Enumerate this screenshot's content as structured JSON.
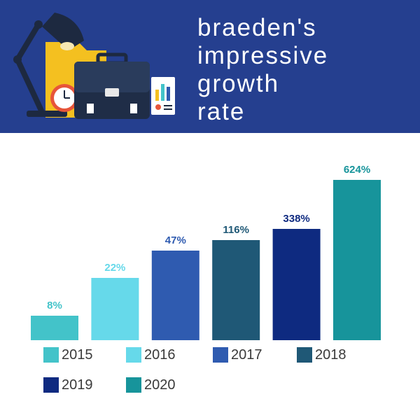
{
  "header": {
    "title_lines": [
      "braeden's",
      "impressive",
      "growth",
      "rate"
    ],
    "background": "#253f8f"
  },
  "illustration": {
    "icons": [
      "desk-lamp-icon",
      "folder-icon",
      "alarm-clock-icon",
      "briefcase-icon",
      "report-chart-icon"
    ]
  },
  "chart_data": {
    "type": "bar",
    "title": "braeden's impressive growth rate",
    "categories": [
      "2015",
      "2016",
      "2017",
      "2018",
      "2019",
      "2020"
    ],
    "values": [
      8,
      22,
      47,
      116,
      338,
      624
    ],
    "value_labels": [
      "8%",
      "22%",
      "47%",
      "116%",
      "338%",
      "624%"
    ],
    "colors": [
      "#43c3c9",
      "#66d9ea",
      "#2f5bb0",
      "#1f5876",
      "#0e2a80",
      "#17949b"
    ],
    "legend_position": "bottom",
    "grid": false,
    "axes_visible": false
  },
  "legend": {
    "items": [
      "2015",
      "2016",
      "2017",
      "2018",
      "2019",
      "2020"
    ]
  }
}
